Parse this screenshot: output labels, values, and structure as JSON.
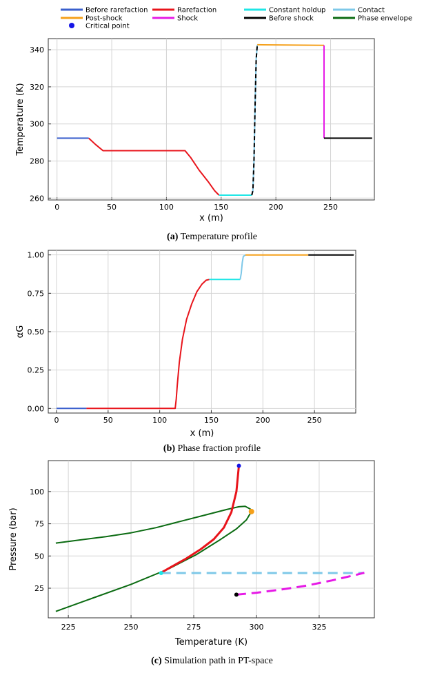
{
  "legend": [
    {
      "label": "Before rarefaction",
      "color": "#3a5fcd",
      "kind": "line"
    },
    {
      "label": "Rarefaction",
      "color": "#e8141b",
      "kind": "line"
    },
    {
      "label": "Constant holdup",
      "color": "#1ee6e6",
      "kind": "line"
    },
    {
      "label": "Contact",
      "color": "#7ec8e8",
      "kind": "line"
    },
    {
      "label": "Post-shock",
      "color": "#f5a01a",
      "kind": "line"
    },
    {
      "label": "Shock",
      "color": "#e619e6",
      "kind": "line"
    },
    {
      "label": "Before shock",
      "color": "#000000",
      "kind": "line"
    },
    {
      "label": "Phase envelope",
      "color": "#0b6b12",
      "kind": "line"
    },
    {
      "label": "Critical point",
      "color": "#1515e6",
      "kind": "dot"
    }
  ],
  "captions": [
    {
      "tag": "(a)",
      "text": "Temperature profile"
    },
    {
      "tag": "(b)",
      "text": "Phase fraction profile"
    },
    {
      "tag": "(c)",
      "text": "Simulation path in PT-space"
    }
  ],
  "chart_data": [
    {
      "type": "line",
      "xlabel": "x (m)",
      "ylabel": "Temperature (K)",
      "xlim": [
        -8,
        290
      ],
      "ylim": [
        259,
        346
      ],
      "xticks": [
        0,
        50,
        100,
        150,
        200,
        250
      ],
      "yticks": [
        260,
        280,
        300,
        320,
        340
      ],
      "grid": true,
      "series": [
        {
          "name": "Before rarefaction",
          "color": "#3a5fcd",
          "width": 2,
          "dash": "",
          "points": [
            [
              0,
              292.3
            ],
            [
              29,
              292.3
            ]
          ]
        },
        {
          "name": "Rarefaction",
          "color": "#e8141b",
          "width": 2,
          "dash": "",
          "points": [
            [
              29,
              292.3
            ],
            [
              35,
              289
            ],
            [
              42,
              285.6
            ],
            [
              117,
              285.6
            ],
            [
              122,
              282
            ],
            [
              130,
              275
            ],
            [
              138,
              269
            ],
            [
              144,
              264
            ],
            [
              148,
              261.6
            ]
          ]
        },
        {
          "name": "Constant holdup",
          "color": "#1ee6e6",
          "width": 2,
          "dash": "",
          "points": [
            [
              148,
              261.6
            ],
            [
              178,
              261.6
            ]
          ]
        },
        {
          "name": "Contact",
          "color": "#7ec8e8",
          "width": 2,
          "dash": "",
          "points": [
            [
              178,
              261.6
            ],
            [
              179,
              264
            ],
            [
              180,
              280
            ],
            [
              181,
              310
            ],
            [
              182,
              335
            ],
            [
              183,
              342.7
            ]
          ]
        },
        {
          "name": "Before shock",
          "color": "#000000",
          "width": 2,
          "dash": "6,4",
          "points": [
            [
              178,
              261.6
            ],
            [
              179,
              264
            ],
            [
              180,
              280
            ],
            [
              181,
              310
            ],
            [
              182,
              335
            ],
            [
              183,
              342.7
            ]
          ]
        },
        {
          "name": "Post-shock",
          "color": "#f5a01a",
          "width": 2,
          "dash": "",
          "points": [
            [
              183,
              342.7
            ],
            [
              244,
              342.4
            ]
          ]
        },
        {
          "name": "Shock",
          "color": "#e619e6",
          "width": 2,
          "dash": "",
          "points": [
            [
              244,
              342.4
            ],
            [
              244,
              292.3
            ]
          ]
        },
        {
          "name": "Before shock",
          "color": "#000000",
          "width": 2,
          "dash": "",
          "points": [
            [
              244,
              292.3
            ],
            [
              288,
              292.3
            ]
          ]
        }
      ]
    },
    {
      "type": "line",
      "xlabel": "x (m)",
      "ylabel": "αG",
      "xlim": [
        -8,
        290
      ],
      "ylim": [
        -0.03,
        1.03
      ],
      "xticks": [
        0,
        50,
        100,
        150,
        200,
        250
      ],
      "yticks": [
        0.0,
        0.25,
        0.5,
        0.75,
        1.0
      ],
      "yticklabels": [
        "0.00",
        "0.25",
        "0.50",
        "0.75",
        "1.00"
      ],
      "grid": true,
      "series": [
        {
          "name": "Before rarefaction",
          "color": "#3a5fcd",
          "width": 2,
          "dash": "",
          "points": [
            [
              0,
              0
            ],
            [
              29,
              0
            ]
          ]
        },
        {
          "name": "Rarefaction",
          "color": "#e8141b",
          "width": 2,
          "dash": "",
          "points": [
            [
              29,
              0
            ],
            [
              115,
              0
            ],
            [
              116,
              0.06
            ],
            [
              117,
              0.15
            ],
            [
              119,
              0.3
            ],
            [
              122,
              0.45
            ],
            [
              126,
              0.58
            ],
            [
              131,
              0.68
            ],
            [
              136,
              0.76
            ],
            [
              141,
              0.81
            ],
            [
              145,
              0.835
            ],
            [
              148,
              0.84
            ]
          ]
        },
        {
          "name": "Constant holdup",
          "color": "#1ee6e6",
          "width": 2,
          "dash": "",
          "points": [
            [
              148,
              0.84
            ],
            [
              178,
              0.84
            ]
          ]
        },
        {
          "name": "Contact",
          "color": "#7ec8e8",
          "width": 2,
          "dash": "",
          "points": [
            [
              178,
              0.84
            ],
            [
              179,
              0.88
            ],
            [
              180,
              0.95
            ],
            [
              181,
              0.99
            ],
            [
              183,
              1.0
            ]
          ]
        },
        {
          "name": "Post-shock",
          "color": "#f5a01a",
          "width": 2,
          "dash": "",
          "points": [
            [
              183,
              1.0
            ],
            [
              244,
              1.0
            ]
          ]
        },
        {
          "name": "Before shock",
          "color": "#000000",
          "width": 2,
          "dash": "",
          "points": [
            [
              244,
              1.0
            ],
            [
              288,
              1.0
            ]
          ]
        }
      ]
    },
    {
      "type": "line",
      "xlabel": "Temperature (K)",
      "ylabel": "Pressure (bar)",
      "xlim": [
        217,
        347
      ],
      "ylim": [
        2,
        124
      ],
      "xticks": [
        225,
        250,
        275,
        300,
        325
      ],
      "yticks": [
        25,
        50,
        75,
        100
      ],
      "grid": true,
      "series": [
        {
          "name": "Phase envelope",
          "color": "#0b6b12",
          "width": 2,
          "dash": "",
          "points": [
            [
              220,
              60
            ],
            [
              230,
              62.5
            ],
            [
              240,
              65
            ],
            [
              250,
              68
            ],
            [
              260,
              72
            ],
            [
              270,
              77
            ],
            [
              280,
              82
            ],
            [
              288,
              86
            ],
            [
              293,
              88.2
            ],
            [
              295.5,
              88.5
            ],
            [
              297.5,
              86.5
            ],
            [
              298,
              84.5
            ],
            [
              296,
              78
            ],
            [
              292,
              71
            ],
            [
              285,
              62
            ],
            [
              276,
              51
            ],
            [
              265,
              40
            ],
            [
              250,
              28
            ],
            [
              235,
              17.5
            ],
            [
              220,
              7
            ]
          ]
        },
        {
          "name": "Rarefaction",
          "color": "#e8141b",
          "width": 3,
          "dash": "",
          "points": [
            [
              262,
              37
            ],
            [
              266,
              41.5
            ],
            [
              272,
              48
            ],
            [
              278,
              55.5
            ],
            [
              283,
              63
            ],
            [
              287,
              72
            ],
            [
              290,
              84
            ],
            [
              292,
              100
            ],
            [
              293,
              120
            ]
          ]
        },
        {
          "name": "Contact",
          "color": "#7ec8e8",
          "width": 3,
          "dash": "14,8",
          "points": [
            [
              262,
              36.8
            ],
            [
              343,
              36.8
            ]
          ]
        },
        {
          "name": "Shock",
          "color": "#e619e6",
          "width": 3,
          "dash": "14,8",
          "points": [
            [
              292,
              20
            ],
            [
              300,
              21.5
            ],
            [
              310,
              24
            ],
            [
              320,
              27
            ],
            [
              330,
              31
            ],
            [
              340,
              35.5
            ],
            [
              343,
              37
            ]
          ]
        }
      ],
      "markers": [
        {
          "name": "Critical point",
          "color": "#1515e6",
          "x": 293,
          "y": 120,
          "r": 3
        },
        {
          "name": "Post-shock",
          "color": "#f5a01a",
          "x": 298,
          "y": 84.5,
          "r": 4
        },
        {
          "name": "Constant holdup",
          "color": "#1ee6e6",
          "x": 262,
          "y": 36.8,
          "r": 3
        },
        {
          "name": "Before shock",
          "color": "#000000",
          "x": 292,
          "y": 20,
          "r": 3
        }
      ]
    }
  ]
}
